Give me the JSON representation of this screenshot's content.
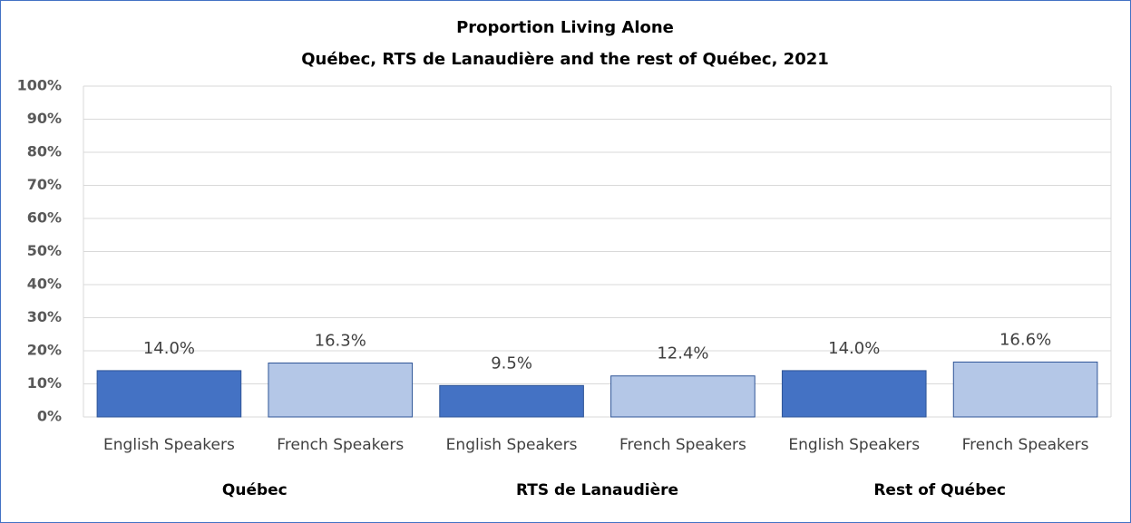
{
  "chart_data": {
    "type": "bar",
    "title": "Proportion Living Alone",
    "subtitle": "Québec, RTS de Lanaudière and the rest of Québec, 2021",
    "categories": [
      "English Speakers",
      "French Speakers",
      "English Speakers",
      "French Speakers",
      "English Speakers",
      "French Speakers"
    ],
    "groups": [
      "Québec",
      "RTS de Lanaudière",
      "Rest of Québec"
    ],
    "values": [
      14.0,
      16.3,
      9.5,
      12.4,
      14.0,
      16.6
    ],
    "value_labels": [
      "14.0%",
      "16.3%",
      "9.5%",
      "12.4%",
      "14.0%",
      "16.6%"
    ],
    "colors": [
      "#4472c4",
      "#b4c7e7",
      "#4472c4",
      "#b4c7e7",
      "#4472c4",
      "#b4c7e7"
    ],
    "ylim": [
      0,
      100
    ],
    "yticks": [
      {
        "value": 0,
        "label": "0%"
      },
      {
        "value": 10,
        "label": "10%"
      },
      {
        "value": 20,
        "label": "20%"
      },
      {
        "value": 30,
        "label": "30%"
      },
      {
        "value": 40,
        "label": "40%"
      },
      {
        "value": 50,
        "label": "50%"
      },
      {
        "value": 60,
        "label": "60%"
      },
      {
        "value": 70,
        "label": "70%"
      },
      {
        "value": 80,
        "label": "80%"
      },
      {
        "value": 90,
        "label": "90%"
      },
      {
        "value": 100,
        "label": "100%"
      }
    ],
    "grid": true
  }
}
